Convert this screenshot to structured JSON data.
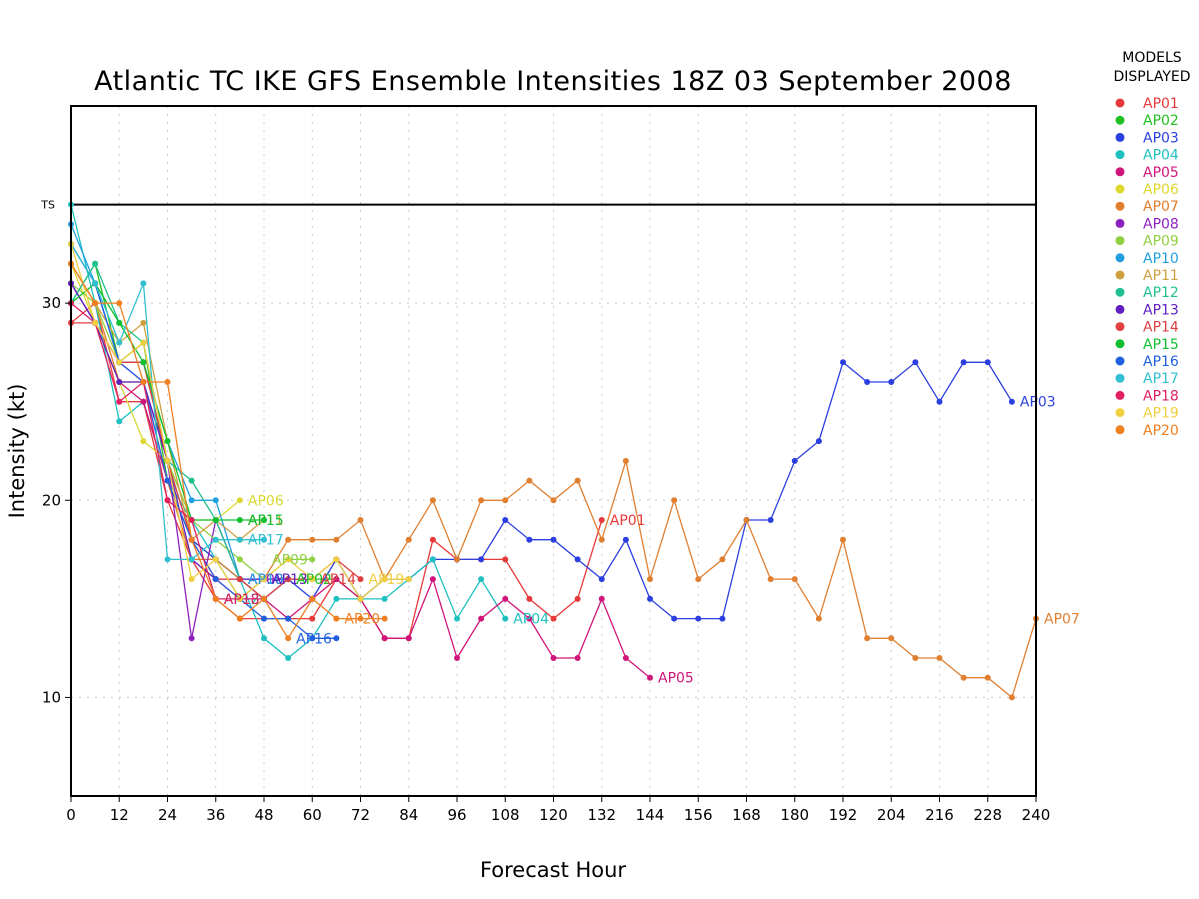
{
  "chart_data": {
    "type": "line",
    "title": "Atlantic TC IKE GFS Ensemble Intensities 18Z 03 September 2008",
    "xlabel": "Forecast Hour",
    "ylabel": "Intensity (kt)",
    "xlim": [
      0,
      240
    ],
    "ylim": [
      5,
      40
    ],
    "xticks": [
      0,
      12,
      24,
      36,
      48,
      60,
      72,
      84,
      96,
      108,
      120,
      132,
      144,
      156,
      168,
      180,
      192,
      204,
      216,
      228,
      240
    ],
    "yticks": [
      10,
      20,
      30
    ],
    "reference_lines": [
      {
        "label": "TS",
        "value": 35
      }
    ],
    "grid": true,
    "legend": {
      "title_lines": [
        "MODELS",
        "DISPLAYED"
      ],
      "placement": "right"
    },
    "series": [
      {
        "name": "AP01",
        "color": "#e8393a",
        "x": [
          0,
          6,
          12,
          18,
          24,
          30,
          36,
          42,
          48,
          54,
          60,
          66,
          72,
          78,
          84,
          90,
          96,
          102,
          108,
          114,
          120,
          126,
          132
        ],
        "y": [
          29,
          30,
          25,
          25,
          20,
          17,
          15,
          14,
          14,
          14,
          14,
          16,
          15,
          13,
          13,
          18,
          17,
          17,
          17,
          15,
          14,
          15,
          19
        ]
      },
      {
        "name": "AP02",
        "color": "#20c020",
        "x": [
          0,
          6,
          12,
          18,
          24,
          30,
          36,
          42,
          48,
          54,
          60,
          66,
          72
        ],
        "y": [
          30,
          32,
          27,
          28,
          21,
          18,
          17,
          15,
          16,
          16,
          16,
          16,
          15
        ]
      },
      {
        "name": "AP03",
        "color": "#2b3fe0",
        "x": [
          0,
          6,
          12,
          18,
          24,
          30,
          36,
          42,
          48,
          54,
          60,
          66,
          72,
          78,
          84,
          90,
          96,
          102,
          108,
          114,
          120,
          126,
          132,
          138,
          144,
          150,
          156,
          162,
          168,
          174,
          180,
          186,
          192,
          198,
          204,
          210,
          216,
          222,
          228,
          234
        ],
        "y": [
          33,
          31,
          27,
          27,
          22,
          18,
          17,
          16,
          15,
          16,
          15,
          17,
          15,
          16,
          16,
          17,
          17,
          17,
          19,
          18,
          18,
          17,
          16,
          18,
          15,
          14,
          14,
          14,
          19,
          19,
          22,
          23,
          27,
          26,
          26,
          27,
          25,
          27,
          27,
          25
        ]
      },
      {
        "name": "AP04",
        "color": "#1ec0c0",
        "x": [
          0,
          6,
          12,
          18,
          24,
          30,
          36,
          42,
          48,
          54,
          60,
          66,
          72,
          78,
          84,
          90,
          96,
          102,
          108
        ],
        "y": [
          35,
          30,
          24,
          25,
          21,
          19,
          17,
          16,
          13,
          12,
          13,
          15,
          15,
          15,
          16,
          17,
          14,
          16,
          14
        ]
      },
      {
        "name": "AP05",
        "color": "#d0167a",
        "x": [
          0,
          6,
          12,
          18,
          24,
          30,
          36,
          42,
          48,
          54,
          60,
          66,
          72,
          78,
          84,
          90,
          96,
          102,
          108,
          114,
          120,
          126,
          132,
          138,
          144
        ],
        "y": [
          31,
          29,
          26,
          25,
          21,
          17,
          16,
          15,
          15,
          14,
          15,
          16,
          15,
          13,
          13,
          16,
          12,
          14,
          15,
          14,
          12,
          12,
          15,
          12,
          11
        ]
      },
      {
        "name": "AP06",
        "color": "#dcd830",
        "x": [
          0,
          6,
          12,
          18,
          24,
          30,
          36,
          42
        ],
        "y": [
          32,
          29,
          26,
          23,
          22,
          19,
          19,
          20
        ]
      },
      {
        "name": "AP07",
        "color": "#e07f30",
        "x": [
          0,
          6,
          12,
          18,
          24,
          30,
          36,
          42,
          48,
          54,
          60,
          66,
          72,
          78,
          84,
          90,
          96,
          102,
          108,
          114,
          120,
          126,
          132,
          138,
          144,
          150,
          156,
          162,
          168,
          174,
          180,
          186,
          192,
          198,
          204,
          210,
          216,
          222,
          228,
          234,
          240
        ],
        "y": [
          32,
          30,
          26,
          26,
          21,
          17,
          17,
          16,
          16,
          18,
          18,
          18,
          19,
          16,
          18,
          20,
          17,
          20,
          20,
          21,
          20,
          21,
          18,
          22,
          16,
          20,
          16,
          17,
          19,
          16,
          16,
          14,
          18,
          13,
          13,
          12,
          12,
          11,
          11,
          10,
          14
        ]
      },
      {
        "name": "AP08",
        "color": "#8f20c0",
        "x": [
          0,
          6,
          12,
          18,
          24,
          30,
          36,
          42
        ],
        "y": [
          31,
          29,
          27,
          26,
          22,
          13,
          19,
          16
        ]
      },
      {
        "name": "AP09",
        "color": "#90d040",
        "x": [
          0,
          6,
          12,
          18,
          24,
          30,
          36,
          42,
          48,
          54,
          60
        ],
        "y": [
          31,
          30,
          27,
          28,
          22,
          19,
          18,
          17,
          16,
          17,
          17
        ]
      },
      {
        "name": "AP10",
        "color": "#20a0e0",
        "x": [
          0,
          6,
          12,
          18,
          24,
          30,
          36,
          42,
          48
        ],
        "y": [
          34,
          31,
          27,
          27,
          23,
          20,
          20,
          16,
          16
        ]
      },
      {
        "name": "AP11",
        "color": "#d0a040",
        "x": [
          0,
          6,
          12,
          18,
          24,
          30,
          36,
          42,
          48
        ],
        "y": [
          32,
          30,
          28,
          29,
          23,
          18,
          19,
          18,
          19
        ]
      },
      {
        "name": "AP12",
        "color": "#20c090",
        "x": [
          0,
          6,
          12,
          18,
          24,
          30,
          36,
          42,
          48
        ],
        "y": [
          30,
          32,
          29,
          28,
          22,
          21,
          19,
          16,
          15
        ]
      },
      {
        "name": "AP13",
        "color": "#6020c0",
        "x": [
          0,
          6,
          12,
          18,
          24,
          30,
          36,
          42,
          48,
          54
        ],
        "y": [
          31,
          29,
          26,
          26,
          22,
          17,
          16,
          16,
          16,
          16
        ]
      },
      {
        "name": "AP14",
        "color": "#e04040",
        "x": [
          0,
          6,
          12,
          18,
          24,
          30,
          36,
          42,
          48,
          54,
          60,
          66,
          72
        ],
        "y": [
          29,
          29,
          27,
          27,
          22,
          18,
          16,
          16,
          15,
          16,
          16,
          17,
          16
        ]
      },
      {
        "name": "AP15",
        "color": "#10c030",
        "x": [
          0,
          6,
          12,
          18,
          24,
          30,
          36,
          42,
          48
        ],
        "y": [
          30,
          31,
          29,
          27,
          23,
          19,
          19,
          19,
          19
        ]
      },
      {
        "name": "AP16",
        "color": "#2060e0",
        "x": [
          0,
          6,
          12,
          18,
          24,
          30,
          36,
          42,
          48,
          54,
          60,
          66
        ],
        "y": [
          33,
          31,
          27,
          26,
          21,
          18,
          16,
          15,
          14,
          14,
          13,
          13
        ]
      },
      {
        "name": "AP17",
        "color": "#30c0d0",
        "x": [
          0,
          6,
          12,
          18,
          24,
          30,
          36,
          42,
          48
        ],
        "y": [
          33,
          31,
          28,
          31,
          17,
          17,
          18,
          18,
          18
        ]
      },
      {
        "name": "AP18",
        "color": "#e02060",
        "x": [
          0,
          6,
          12,
          18,
          24,
          30,
          36,
          42
        ],
        "y": [
          30,
          29,
          25,
          26,
          20,
          19,
          15,
          15
        ]
      },
      {
        "name": "AP19",
        "color": "#f0d040",
        "x": [
          0,
          6,
          12,
          18,
          24,
          30,
          36,
          42,
          48,
          54,
          60,
          66,
          72,
          78,
          84
        ],
        "y": [
          33,
          29,
          27,
          28,
          22,
          16,
          17,
          15,
          16,
          17,
          16,
          17,
          15,
          16,
          16
        ]
      },
      {
        "name": "AP20",
        "color": "#f07f20",
        "x": [
          0,
          6,
          12,
          18,
          24,
          30,
          36,
          42,
          48,
          54,
          60,
          66,
          72,
          78
        ],
        "y": [
          32,
          30,
          30,
          26,
          26,
          18,
          15,
          14,
          15,
          13,
          15,
          14,
          14,
          14
        ]
      }
    ],
    "end_labels": [
      {
        "text": "AP06",
        "x": 42,
        "y": 20,
        "color": "#dcd830"
      },
      {
        "text": "AP11",
        "x": 42,
        "y": 19,
        "color": "#d0a040"
      },
      {
        "text": "AP15",
        "x": 42,
        "y": 19,
        "color": "#10c030"
      },
      {
        "text": "AP17",
        "x": 42,
        "y": 18,
        "color": "#30c0d0"
      },
      {
        "text": "AP09",
        "x": 48,
        "y": 17,
        "color": "#90d040"
      },
      {
        "text": "AP08",
        "x": 42,
        "y": 16,
        "color": "#8f20c0"
      },
      {
        "text": "AP10",
        "x": 42,
        "y": 16,
        "color": "#20a0e0"
      },
      {
        "text": "AP13",
        "x": 48,
        "y": 16,
        "color": "#6020c0"
      },
      {
        "text": "AP02",
        "x": 54,
        "y": 16,
        "color": "#20c020"
      },
      {
        "text": "AP14",
        "x": 60,
        "y": 16,
        "color": "#e04040"
      },
      {
        "text": "AP19",
        "x": 72,
        "y": 16,
        "color": "#f0d040"
      },
      {
        "text": "AP12",
        "x": 36,
        "y": 15,
        "color": "#20c090"
      },
      {
        "text": "AP18",
        "x": 36,
        "y": 15,
        "color": "#e02060"
      },
      {
        "text": "AP16",
        "x": 54,
        "y": 13,
        "color": "#2060e0"
      },
      {
        "text": "AP20",
        "x": 66,
        "y": 14,
        "color": "#f07f20"
      },
      {
        "text": "AP04",
        "x": 108,
        "y": 14,
        "color": "#1ec0c0"
      },
      {
        "text": "AP01",
        "x": 132,
        "y": 19,
        "color": "#e8393a"
      },
      {
        "text": "AP05",
        "x": 144,
        "y": 11,
        "color": "#d0167a"
      },
      {
        "text": "AP03",
        "x": 234,
        "y": 25,
        "color": "#2b3fe0"
      },
      {
        "text": "AP07",
        "x": 240,
        "y": 14,
        "color": "#e07f30"
      }
    ]
  }
}
